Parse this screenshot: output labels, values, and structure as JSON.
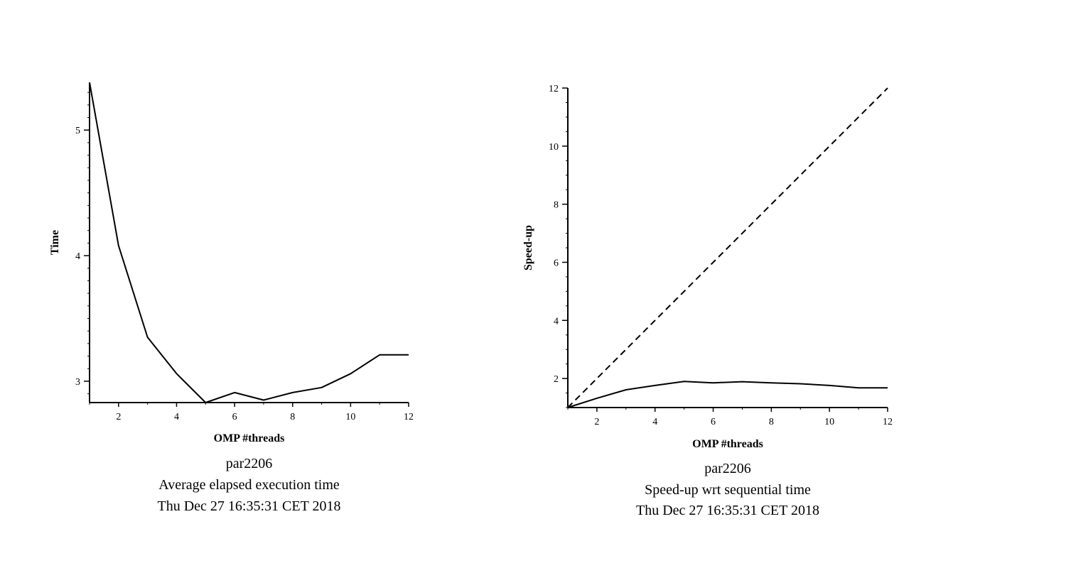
{
  "chart_data": [
    {
      "type": "line",
      "xlabel": "OMP #threads",
      "ylabel": "Time",
      "caption": [
        "par2206",
        "Average elapsed execution time",
        "Thu Dec 27 16:35:31 CET 2018"
      ],
      "xlim": [
        1,
        12
      ],
      "ylim": [
        2.83,
        5.38
      ],
      "xticks": [
        2,
        4,
        6,
        8,
        10,
        12
      ],
      "yticks": [
        3,
        4,
        5
      ],
      "yminor_step": 0.1,
      "grid": false,
      "series": [
        {
          "style": "solid",
          "x": [
            1,
            2,
            3,
            4,
            5,
            6,
            7,
            8,
            9,
            10,
            11,
            12
          ],
          "y": [
            5.38,
            4.08,
            3.35,
            3.06,
            2.83,
            2.91,
            2.85,
            2.91,
            2.95,
            3.06,
            3.21,
            3.21
          ]
        }
      ]
    },
    {
      "type": "line",
      "xlabel": "OMP #threads",
      "ylabel": "Speed-up",
      "caption": [
        "par2206",
        "Speed-up wrt sequential time",
        "Thu Dec 27 16:35:31 CET 2018"
      ],
      "xlim": [
        1,
        12
      ],
      "ylim": [
        1,
        12
      ],
      "xticks": [
        2,
        4,
        6,
        8,
        10,
        12
      ],
      "yticks": [
        2,
        4,
        6,
        8,
        10,
        12
      ],
      "yminor_step": 0.5,
      "grid": false,
      "series": [
        {
          "style": "solid",
          "x": [
            1,
            2,
            3,
            4,
            5,
            6,
            7,
            8,
            9,
            10,
            11,
            12
          ],
          "y": [
            1.0,
            1.32,
            1.61,
            1.76,
            1.9,
            1.85,
            1.89,
            1.85,
            1.82,
            1.76,
            1.68,
            1.68
          ]
        },
        {
          "style": "dashed",
          "x": [
            1,
            12
          ],
          "y": [
            1,
            12
          ]
        }
      ]
    }
  ]
}
